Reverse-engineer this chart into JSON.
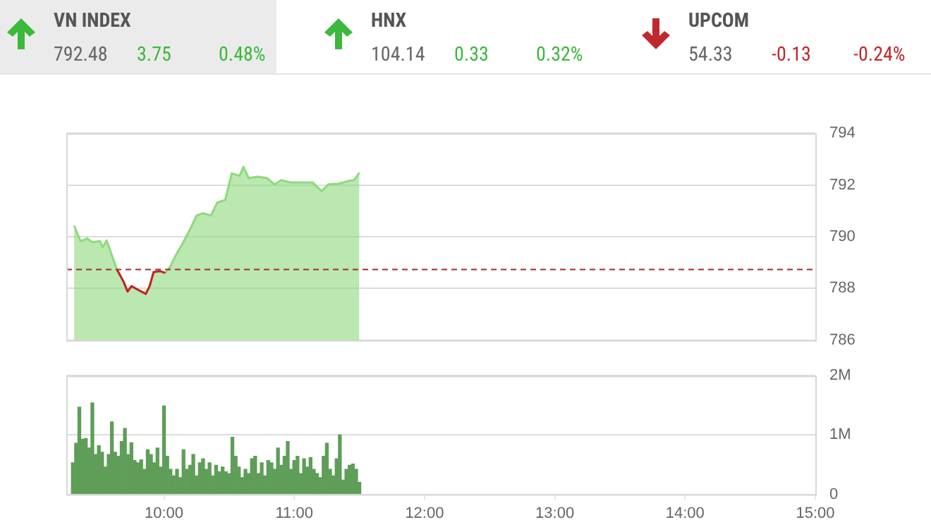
{
  "chart_data": [
    {
      "type": "other",
      "colors": [
        "#3cb83c",
        "#3cb83c",
        "#c0282d"
      ],
      "annotations": [
        "VN INDEX",
        "792.48",
        "3.75",
        "0.48%",
        "HNX",
        "104.14",
        "0.33",
        "0.32%",
        "UPCOM",
        "54.33",
        "-0.13",
        "-0.24%"
      ]
    },
    {
      "type": "area",
      "xlim": [
        9.25,
        15
      ],
      "ylim": [
        786,
        794
      ],
      "yticks": [
        786,
        788,
        790,
        792,
        794
      ],
      "grid": "y",
      "tick_labels": "y",
      "marker": "none",
      "ref_lines": [
        {
          "axis": "y",
          "value": 788.73,
          "color": "#a52a2a",
          "line_style": "dashed"
        }
      ],
      "series": [
        {
          "type": "area",
          "color": "#8ed97c",
          "x": [
            9.31,
            9.36,
            9.41,
            9.45,
            9.51,
            9.53,
            9.56,
            9.6,
            9.64,
            9.69,
            9.72,
            9.75,
            9.8,
            9.86,
            9.89,
            9.92,
            9.97,
            10.01,
            10.05,
            10.09,
            10.14,
            10.21,
            10.25,
            10.3,
            10.36,
            10.41,
            10.47,
            10.52,
            10.58,
            10.61,
            10.65,
            10.72,
            10.79,
            10.85,
            10.9,
            10.97,
            11.05,
            11.14,
            11.21,
            11.26,
            11.34,
            11.41,
            11.46,
            11.5
          ],
          "values": [
            790.43,
            789.83,
            789.93,
            789.79,
            789.83,
            789.59,
            789.86,
            789.28,
            788.72,
            788.26,
            787.88,
            788.09,
            787.95,
            787.79,
            788.09,
            788.63,
            788.67,
            788.6,
            788.86,
            789.28,
            789.71,
            790.39,
            790.82,
            790.91,
            790.82,
            791.33,
            791.42,
            792.45,
            792.36,
            792.7,
            792.27,
            792.32,
            792.27,
            792.02,
            792.19,
            792.1,
            792.1,
            792.1,
            791.76,
            792.02,
            792.05,
            792.15,
            792.19,
            792.48
          ]
        },
        {
          "type": "line",
          "color": "#c8201e",
          "x": [
            9.64,
            9.69,
            9.72,
            9.75,
            9.8,
            9.86,
            9.89,
            9.92,
            9.97,
            10.01
          ],
          "values": [
            788.72,
            788.26,
            787.88,
            788.09,
            787.95,
            787.79,
            788.09,
            788.63,
            788.67,
            788.6
          ]
        }
      ]
    },
    {
      "type": "bar",
      "xlim": [
        9.25,
        15
      ],
      "ylim": [
        0,
        2
      ],
      "yticks": [
        0,
        {
          "value": 1,
          "label": "1M"
        },
        {
          "value": 2,
          "label": "2M"
        }
      ],
      "xticks": [
        {
          "value": 10,
          "label": "10:00"
        },
        {
          "value": 11,
          "label": "11:00"
        },
        {
          "value": 12,
          "label": "12:00"
        },
        {
          "value": 13,
          "label": "13:00"
        },
        {
          "value": 14,
          "label": "14:00"
        },
        {
          "value": 15,
          "label": "15:00"
        }
      ],
      "grid": "y",
      "color": "#5e9e58",
      "x": [
        9.3,
        9.325,
        9.35,
        9.375,
        9.4,
        9.425,
        9.45,
        9.475,
        9.5,
        9.525,
        9.55,
        9.575,
        9.6,
        9.625,
        9.65,
        9.675,
        9.7,
        9.725,
        9.75,
        9.775,
        9.8,
        9.825,
        9.85,
        9.875,
        9.9,
        9.925,
        9.95,
        9.975,
        10,
        10.025,
        10.05,
        10.075,
        10.1,
        10.125,
        10.15,
        10.175,
        10.2,
        10.225,
        10.25,
        10.275,
        10.3,
        10.325,
        10.35,
        10.375,
        10.4,
        10.425,
        10.45,
        10.475,
        10.5,
        10.525,
        10.55,
        10.575,
        10.6,
        10.625,
        10.65,
        10.675,
        10.7,
        10.725,
        10.75,
        10.775,
        10.8,
        10.825,
        10.85,
        10.875,
        10.9,
        10.925,
        10.95,
        10.975,
        11,
        11.025,
        11.05,
        11.075,
        11.1,
        11.125,
        11.15,
        11.175,
        11.2,
        11.225,
        11.25,
        11.275,
        11.3,
        11.325,
        11.35,
        11.375,
        11.4,
        11.425,
        11.45,
        11.475,
        11.5
      ],
      "values": [
        0.53,
        0.86,
        1.47,
        0.93,
        0.94,
        0.78,
        1.54,
        0.67,
        0.82,
        0.71,
        0.46,
        0.67,
        1.22,
        0.71,
        0.64,
        0.89,
        1.11,
        0.67,
        0.87,
        0.57,
        0.53,
        0.58,
        0.42,
        0.75,
        0.67,
        0.53,
        0.78,
        0.46,
        1.49,
        0.64,
        0.42,
        0.31,
        0.42,
        0.28,
        0.75,
        0.42,
        0.49,
        0.67,
        0.31,
        0.53,
        0.6,
        0.42,
        0.53,
        0.31,
        0.49,
        0.38,
        0.46,
        0.38,
        0.35,
        0.96,
        0.64,
        0.46,
        0.28,
        0.42,
        0.35,
        0.6,
        0.64,
        0.35,
        0.53,
        0.31,
        0.57,
        0.53,
        0.42,
        0.78,
        0.49,
        0.64,
        0.89,
        0.42,
        0.57,
        0.64,
        0.35,
        0.6,
        0.46,
        0.62,
        0.42,
        0.35,
        0.28,
        0.64,
        0.86,
        0.42,
        0.31,
        0.6,
        1.0,
        0.24,
        0.42,
        0.49,
        0.51,
        0.42,
        0.2
      ]
    }
  ]
}
